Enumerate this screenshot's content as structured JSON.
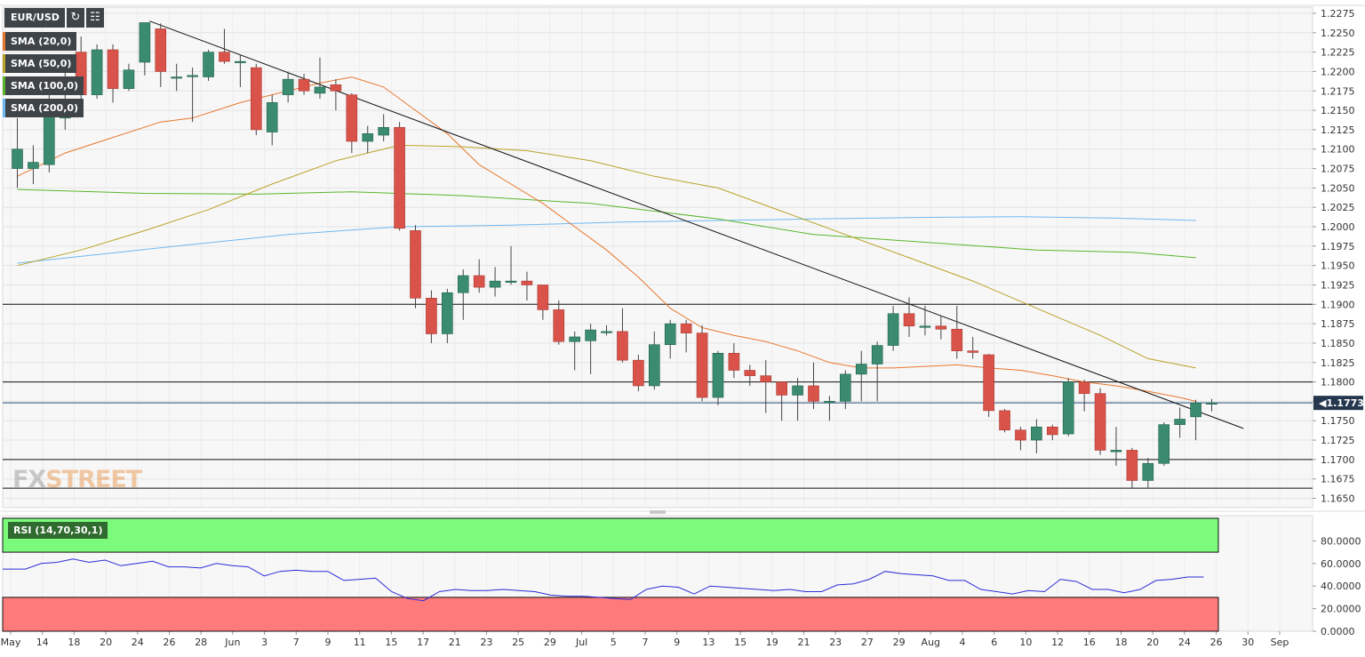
{
  "chart_data": {
    "type": "candlestick",
    "symbol": "EUR/USD",
    "legend_items": [
      {
        "label": "SMA (20,0)",
        "color": "#e8772e"
      },
      {
        "label": "SMA (50,0)",
        "color": "#b8a326"
      },
      {
        "label": "SMA (100,0)",
        "color": "#5ab52b"
      },
      {
        "label": "SMA (200,0)",
        "color": "#6fb8f2"
      }
    ],
    "price_axis": {
      "ylim": [
        1.1638,
        1.2283
      ],
      "ticks": [
        "1.2275",
        "1.2250",
        "1.2225",
        "1.2200",
        "1.2175",
        "1.2150",
        "1.2125",
        "1.2100",
        "1.2075",
        "1.2050",
        "1.2025",
        "1.2000",
        "1.1975",
        "1.1950",
        "1.1925",
        "1.1900",
        "1.1875",
        "1.1850",
        "1.1825",
        "1.1800",
        "1.1775",
        "1.1750",
        "1.1725",
        "1.1700",
        "1.1675",
        "1.1650"
      ],
      "current_price": 1.1773,
      "current_price_label": "1.177310"
    },
    "x_axis": {
      "labels": [
        "May",
        "14",
        "18",
        "20",
        "24",
        "26",
        "28",
        "Jun",
        "3",
        "7",
        "9",
        "11",
        "15",
        "17",
        "21",
        "23",
        "25",
        "29",
        "Jul",
        "5",
        "7",
        "9",
        "13",
        "15",
        "19",
        "21",
        "23",
        "27",
        "29",
        "Aug",
        "4",
        "6",
        "10",
        "12",
        "16",
        "18",
        "20",
        "24",
        "26",
        "30",
        "Sep"
      ]
    },
    "candles": [
      {
        "o": 1.2075,
        "h": 1.214,
        "l": 1.205,
        "c": 1.21
      },
      {
        "o": 1.2075,
        "h": 1.2105,
        "l": 1.2055,
        "c": 1.2083
      },
      {
        "o": 1.208,
        "h": 1.217,
        "l": 1.207,
        "c": 1.2155
      },
      {
        "o": 1.214,
        "h": 1.222,
        "l": 1.2125,
        "c": 1.215
      },
      {
        "o": 1.2225,
        "h": 1.2245,
        "l": 1.2165,
        "c": 1.217
      },
      {
        "o": 1.217,
        "h": 1.2235,
        "l": 1.2165,
        "c": 1.2228
      },
      {
        "o": 1.2228,
        "h": 1.2235,
        "l": 1.216,
        "c": 1.2178
      },
      {
        "o": 1.2178,
        "h": 1.221,
        "l": 1.2175,
        "c": 1.2202
      },
      {
        "o": 1.2212,
        "h": 1.2263,
        "l": 1.2195,
        "c": 1.2263
      },
      {
        "o": 1.2255,
        "h": 1.2262,
        "l": 1.218,
        "c": 1.22
      },
      {
        "o": 1.2192,
        "h": 1.221,
        "l": 1.2175,
        "c": 1.2193
      },
      {
        "o": 1.2195,
        "h": 1.2205,
        "l": 1.2135,
        "c": 1.2195
      },
      {
        "o": 1.2193,
        "h": 1.2228,
        "l": 1.2188,
        "c": 1.2225
      },
      {
        "o": 1.2225,
        "h": 1.2255,
        "l": 1.221,
        "c": 1.2213
      },
      {
        "o": 1.2213,
        "h": 1.2222,
        "l": 1.218,
        "c": 1.2213
      },
      {
        "o": 1.2205,
        "h": 1.221,
        "l": 1.2118,
        "c": 1.2125
      },
      {
        "o": 1.2122,
        "h": 1.217,
        "l": 1.2105,
        "c": 1.216
      },
      {
        "o": 1.217,
        "h": 1.22,
        "l": 1.216,
        "c": 1.219
      },
      {
        "o": 1.219,
        "h": 1.2197,
        "l": 1.217,
        "c": 1.2175
      },
      {
        "o": 1.2172,
        "h": 1.2218,
        "l": 1.2165,
        "c": 1.218
      },
      {
        "o": 1.2183,
        "h": 1.219,
        "l": 1.215,
        "c": 1.2175
      },
      {
        "o": 1.217,
        "h": 1.2172,
        "l": 1.2095,
        "c": 1.211
      },
      {
        "o": 1.211,
        "h": 1.213,
        "l": 1.2095,
        "c": 1.212
      },
      {
        "o": 1.2118,
        "h": 1.2145,
        "l": 1.211,
        "c": 1.2128
      },
      {
        "o": 1.2128,
        "h": 1.2135,
        "l": 1.1995,
        "c": 1.1998
      },
      {
        "o": 1.1995,
        "h": 1.2002,
        "l": 1.1895,
        "c": 1.1908
      },
      {
        "o": 1.1908,
        "h": 1.1918,
        "l": 1.185,
        "c": 1.1862
      },
      {
        "o": 1.1862,
        "h": 1.192,
        "l": 1.185,
        "c": 1.1915
      },
      {
        "o": 1.1915,
        "h": 1.1945,
        "l": 1.188,
        "c": 1.1937
      },
      {
        "o": 1.1937,
        "h": 1.1958,
        "l": 1.1915,
        "c": 1.1922
      },
      {
        "o": 1.1922,
        "h": 1.1948,
        "l": 1.191,
        "c": 1.193
      },
      {
        "o": 1.193,
        "h": 1.1975,
        "l": 1.1925,
        "c": 1.193
      },
      {
        "o": 1.193,
        "h": 1.1942,
        "l": 1.1905,
        "c": 1.1925
      },
      {
        "o": 1.1925,
        "h": 1.1925,
        "l": 1.188,
        "c": 1.1893
      },
      {
        "o": 1.1893,
        "h": 1.1905,
        "l": 1.1848,
        "c": 1.1852
      },
      {
        "o": 1.1852,
        "h": 1.1865,
        "l": 1.1815,
        "c": 1.1858
      },
      {
        "o": 1.1853,
        "h": 1.1875,
        "l": 1.181,
        "c": 1.1867
      },
      {
        "o": 1.1865,
        "h": 1.1873,
        "l": 1.186,
        "c": 1.1865
      },
      {
        "o": 1.1865,
        "h": 1.1895,
        "l": 1.1825,
        "c": 1.1828
      },
      {
        "o": 1.1828,
        "h": 1.1835,
        "l": 1.1788,
        "c": 1.1795
      },
      {
        "o": 1.1795,
        "h": 1.1865,
        "l": 1.179,
        "c": 1.1848
      },
      {
        "o": 1.1848,
        "h": 1.188,
        "l": 1.183,
        "c": 1.1875
      },
      {
        "o": 1.1875,
        "h": 1.188,
        "l": 1.1838,
        "c": 1.1863
      },
      {
        "o": 1.1863,
        "h": 1.1873,
        "l": 1.1775,
        "c": 1.178
      },
      {
        "o": 1.178,
        "h": 1.184,
        "l": 1.177,
        "c": 1.1837
      },
      {
        "o": 1.1837,
        "h": 1.185,
        "l": 1.1805,
        "c": 1.1815
      },
      {
        "o": 1.1815,
        "h": 1.1822,
        "l": 1.1795,
        "c": 1.1808
      },
      {
        "o": 1.1808,
        "h": 1.1828,
        "l": 1.176,
        "c": 1.18
      },
      {
        "o": 1.18,
        "h": 1.18,
        "l": 1.175,
        "c": 1.1783
      },
      {
        "o": 1.1783,
        "h": 1.1805,
        "l": 1.175,
        "c": 1.1795
      },
      {
        "o": 1.1795,
        "h": 1.1825,
        "l": 1.1765,
        "c": 1.1775
      },
      {
        "o": 1.1775,
        "h": 1.1782,
        "l": 1.175,
        "c": 1.1775
      },
      {
        "o": 1.1775,
        "h": 1.1815,
        "l": 1.1765,
        "c": 1.181
      },
      {
        "o": 1.181,
        "h": 1.184,
        "l": 1.1775,
        "c": 1.1823
      },
      {
        "o": 1.1823,
        "h": 1.1852,
        "l": 1.1775,
        "c": 1.1847
      },
      {
        "o": 1.1847,
        "h": 1.1898,
        "l": 1.184,
        "c": 1.1888
      },
      {
        "o": 1.1888,
        "h": 1.1909,
        "l": 1.1858,
        "c": 1.1872
      },
      {
        "o": 1.1872,
        "h": 1.1898,
        "l": 1.186,
        "c": 1.1872
      },
      {
        "o": 1.1872,
        "h": 1.1885,
        "l": 1.1855,
        "c": 1.1868
      },
      {
        "o": 1.1868,
        "h": 1.1898,
        "l": 1.183,
        "c": 1.184
      },
      {
        "o": 1.184,
        "h": 1.1858,
        "l": 1.183,
        "c": 1.1838
      },
      {
        "o": 1.1835,
        "h": 1.1836,
        "l": 1.1755,
        "c": 1.1763
      },
      {
        "o": 1.1763,
        "h": 1.1765,
        "l": 1.1735,
        "c": 1.1738
      },
      {
        "o": 1.1738,
        "h": 1.1742,
        "l": 1.1712,
        "c": 1.1725
      },
      {
        "o": 1.1725,
        "h": 1.1752,
        "l": 1.1708,
        "c": 1.1742
      },
      {
        "o": 1.1742,
        "h": 1.1745,
        "l": 1.1725,
        "c": 1.1732
      },
      {
        "o": 1.1733,
        "h": 1.1805,
        "l": 1.173,
        "c": 1.18
      },
      {
        "o": 1.18,
        "h": 1.1803,
        "l": 1.1762,
        "c": 1.1785
      },
      {
        "o": 1.1785,
        "h": 1.1792,
        "l": 1.1706,
        "c": 1.1712
      },
      {
        "o": 1.171,
        "h": 1.1742,
        "l": 1.1692,
        "c": 1.1712
      },
      {
        "o": 1.1712,
        "h": 1.1715,
        "l": 1.1663,
        "c": 1.1673
      },
      {
        "o": 1.1673,
        "h": 1.1702,
        "l": 1.1664,
        "c": 1.1695
      },
      {
        "o": 1.1695,
        "h": 1.1748,
        "l": 1.1692,
        "c": 1.1745
      },
      {
        "o": 1.1745,
        "h": 1.1767,
        "l": 1.1728,
        "c": 1.1752
      },
      {
        "o": 1.1755,
        "h": 1.1777,
        "l": 1.1725,
        "c": 1.1773
      },
      {
        "o": 1.1773,
        "h": 1.1778,
        "l": 1.1762,
        "c": 1.1773
      }
    ],
    "sma": {
      "sma20": [
        [
          0,
          1.2065
        ],
        [
          3,
          1.2095
        ],
        [
          6,
          1.2115
        ],
        [
          9,
          1.2135
        ],
        [
          11,
          1.214
        ],
        [
          14,
          1.216
        ],
        [
          16,
          1.217
        ],
        [
          19,
          1.2185
        ],
        [
          21,
          1.2193
        ],
        [
          23,
          1.218
        ],
        [
          25,
          1.215
        ],
        [
          27,
          1.212
        ],
        [
          29,
          1.208
        ],
        [
          31,
          1.2055
        ],
        [
          33,
          1.203
        ],
        [
          35,
          1.2
        ],
        [
          37,
          1.197
        ],
        [
          39,
          1.1935
        ],
        [
          41,
          1.1895
        ],
        [
          43,
          1.187
        ],
        [
          45,
          1.186
        ],
        [
          47,
          1.1852
        ],
        [
          49,
          1.184
        ],
        [
          51,
          1.1825
        ],
        [
          53,
          1.1818
        ],
        [
          55,
          1.1818
        ],
        [
          57,
          1.182
        ],
        [
          59,
          1.1822
        ],
        [
          61,
          1.1818
        ],
        [
          63,
          1.1815
        ],
        [
          65,
          1.1808
        ],
        [
          67,
          1.18
        ],
        [
          69,
          1.1795
        ],
        [
          71,
          1.1788
        ],
        [
          73,
          1.178
        ],
        [
          74,
          1.1775
        ]
      ],
      "sma50": [
        [
          0,
          1.195
        ],
        [
          4,
          1.197
        ],
        [
          8,
          1.1995
        ],
        [
          12,
          1.2022
        ],
        [
          16,
          1.2055
        ],
        [
          20,
          1.2085
        ],
        [
          24,
          1.2105
        ],
        [
          28,
          1.2103
        ],
        [
          32,
          1.2098
        ],
        [
          36,
          1.2085
        ],
        [
          40,
          1.2065
        ],
        [
          44,
          1.205
        ],
        [
          48,
          1.202
        ],
        [
          52,
          1.199
        ],
        [
          56,
          1.196
        ],
        [
          60,
          1.193
        ],
        [
          64,
          1.1895
        ],
        [
          68,
          1.186
        ],
        [
          71,
          1.183
        ],
        [
          74,
          1.1818
        ]
      ],
      "sma100": [
        [
          0,
          1.2048
        ],
        [
          8,
          1.2043
        ],
        [
          15,
          1.2042
        ],
        [
          21,
          1.2045
        ],
        [
          28,
          1.204
        ],
        [
          36,
          1.203
        ],
        [
          44,
          1.201
        ],
        [
          50,
          1.199
        ],
        [
          57,
          1.198
        ],
        [
          64,
          1.197
        ],
        [
          70,
          1.1967
        ],
        [
          74,
          1.196
        ]
      ],
      "sma200": [
        [
          0,
          1.1953
        ],
        [
          10,
          1.1975
        ],
        [
          17,
          1.199
        ],
        [
          24,
          1.2
        ],
        [
          31,
          1.2002
        ],
        [
          38,
          1.2006
        ],
        [
          44,
          1.2008
        ],
        [
          50,
          1.201
        ],
        [
          57,
          1.2012
        ],
        [
          63,
          1.2013
        ],
        [
          69,
          1.2011
        ],
        [
          74,
          1.2008
        ]
      ]
    },
    "trendline": [
      [
        8.3,
        1.2265
      ],
      [
        77,
        1.174
      ]
    ],
    "horizontal_levels": [
      1.19,
      1.18,
      1.17,
      1.1663
    ],
    "rsi": {
      "label": "RSI (14,70,30,1)",
      "ticks": [
        "80.0000",
        "60.0000",
        "40.0000",
        "20.0000",
        "0.0000"
      ],
      "overbought": 70,
      "oversold": 30,
      "values": [
        55,
        55,
        60,
        61,
        64,
        61,
        63,
        58,
        60,
        62,
        57,
        57,
        56,
        60,
        58,
        57,
        49,
        53,
        54,
        53,
        53,
        45,
        46,
        47,
        35,
        29,
        27,
        35,
        37,
        36,
        36,
        37,
        36,
        35,
        32,
        31,
        31,
        30,
        29,
        28,
        37,
        40,
        39,
        33,
        40,
        39,
        38,
        37,
        36,
        37,
        35,
        35,
        41,
        42,
        46,
        53,
        51,
        50,
        49,
        45,
        45,
        37,
        35,
        33,
        36,
        35,
        46,
        44,
        37,
        37,
        34,
        37,
        45,
        46,
        48,
        48
      ]
    }
  }
}
